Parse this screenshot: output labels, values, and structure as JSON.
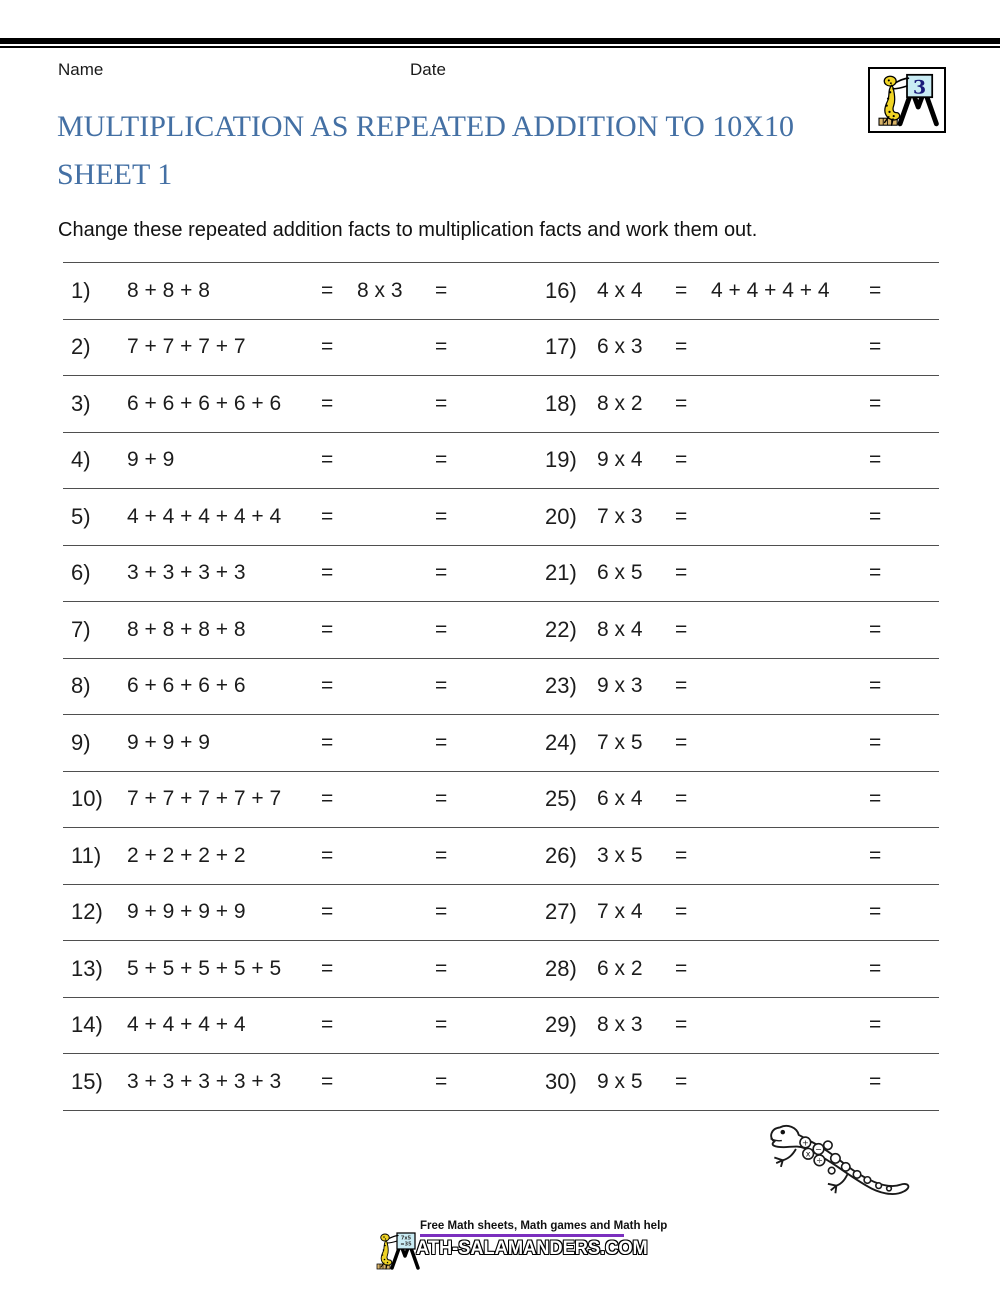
{
  "header": {
    "name_label": "Name",
    "date_label": "Date",
    "title_line1": "MULTIPLICATION AS REPEATED ADDITION TO 10X10",
    "title_line2": "SHEET 1",
    "instruction": "Change these repeated addition facts to multiplication facts and work them out."
  },
  "logo": {
    "board_number": "3",
    "footer_board_line1": "7x5",
    "footer_board_line2": "=35"
  },
  "colors": {
    "title_blue": "#4470a4",
    "rule_gray": "#4f4f4f",
    "footer_purple": "#7b2fbe",
    "salamander_yellow": "#f0d425",
    "board_blue": "#c9ecf4"
  },
  "worksheet": {
    "equals": "=",
    "left_problems": [
      {
        "num": "1)",
        "expr": "8 + 8 + 8",
        "ans": "8 x 3"
      },
      {
        "num": "2)",
        "expr": "7 + 7 + 7 + 7",
        "ans": ""
      },
      {
        "num": "3)",
        "expr": "6 + 6 + 6 + 6 + 6",
        "ans": ""
      },
      {
        "num": "4)",
        "expr": "9 + 9",
        "ans": ""
      },
      {
        "num": "5)",
        "expr": "4 + 4 + 4 + 4 + 4",
        "ans": ""
      },
      {
        "num": "6)",
        "expr": "3 + 3 + 3 + 3",
        "ans": ""
      },
      {
        "num": "7)",
        "expr": "8 + 8 + 8 + 8",
        "ans": ""
      },
      {
        "num": "8)",
        "expr": "6 + 6 + 6 + 6",
        "ans": ""
      },
      {
        "num": "9)",
        "expr": "9 + 9 + 9",
        "ans": ""
      },
      {
        "num": "10)",
        "expr": "7 + 7 + 7 + 7 + 7",
        "ans": ""
      },
      {
        "num": "11)",
        "expr": "2 + 2 + 2 + 2",
        "ans": ""
      },
      {
        "num": "12)",
        "expr": "9 + 9 + 9 + 9",
        "ans": ""
      },
      {
        "num": "13)",
        "expr": "5 + 5 + 5 + 5 + 5",
        "ans": ""
      },
      {
        "num": "14)",
        "expr": "4 + 4 + 4 + 4",
        "ans": ""
      },
      {
        "num": "15)",
        "expr": "3 + 3 + 3 + 3 + 3",
        "ans": ""
      }
    ],
    "right_problems": [
      {
        "num": "16)",
        "expr": "4 x 4",
        "ans": "4 + 4 + 4 + 4"
      },
      {
        "num": "17)",
        "expr": "6 x 3",
        "ans": ""
      },
      {
        "num": "18)",
        "expr": "8 x 2",
        "ans": ""
      },
      {
        "num": "19)",
        "expr": "9 x 4",
        "ans": ""
      },
      {
        "num": "20)",
        "expr": "7 x 3",
        "ans": ""
      },
      {
        "num": "21)",
        "expr": "6 x 5",
        "ans": ""
      },
      {
        "num": "22)",
        "expr": "8 x 4",
        "ans": ""
      },
      {
        "num": "23)",
        "expr": "9 x 3",
        "ans": ""
      },
      {
        "num": "24)",
        "expr": "7 x 5",
        "ans": ""
      },
      {
        "num": "25)",
        "expr": "6 x 4",
        "ans": ""
      },
      {
        "num": "26)",
        "expr": "3 x 5",
        "ans": ""
      },
      {
        "num": "27)",
        "expr": "7 x 4",
        "ans": ""
      },
      {
        "num": "28)",
        "expr": "6 x 2",
        "ans": ""
      },
      {
        "num": "29)",
        "expr": "8 x 3",
        "ans": ""
      },
      {
        "num": "30)",
        "expr": "9 x 5",
        "ans": ""
      }
    ]
  },
  "footer": {
    "tagline": "Free Math sheets, Math games and Math help",
    "site_name": "ATH-SALAMANDERS.COM"
  }
}
